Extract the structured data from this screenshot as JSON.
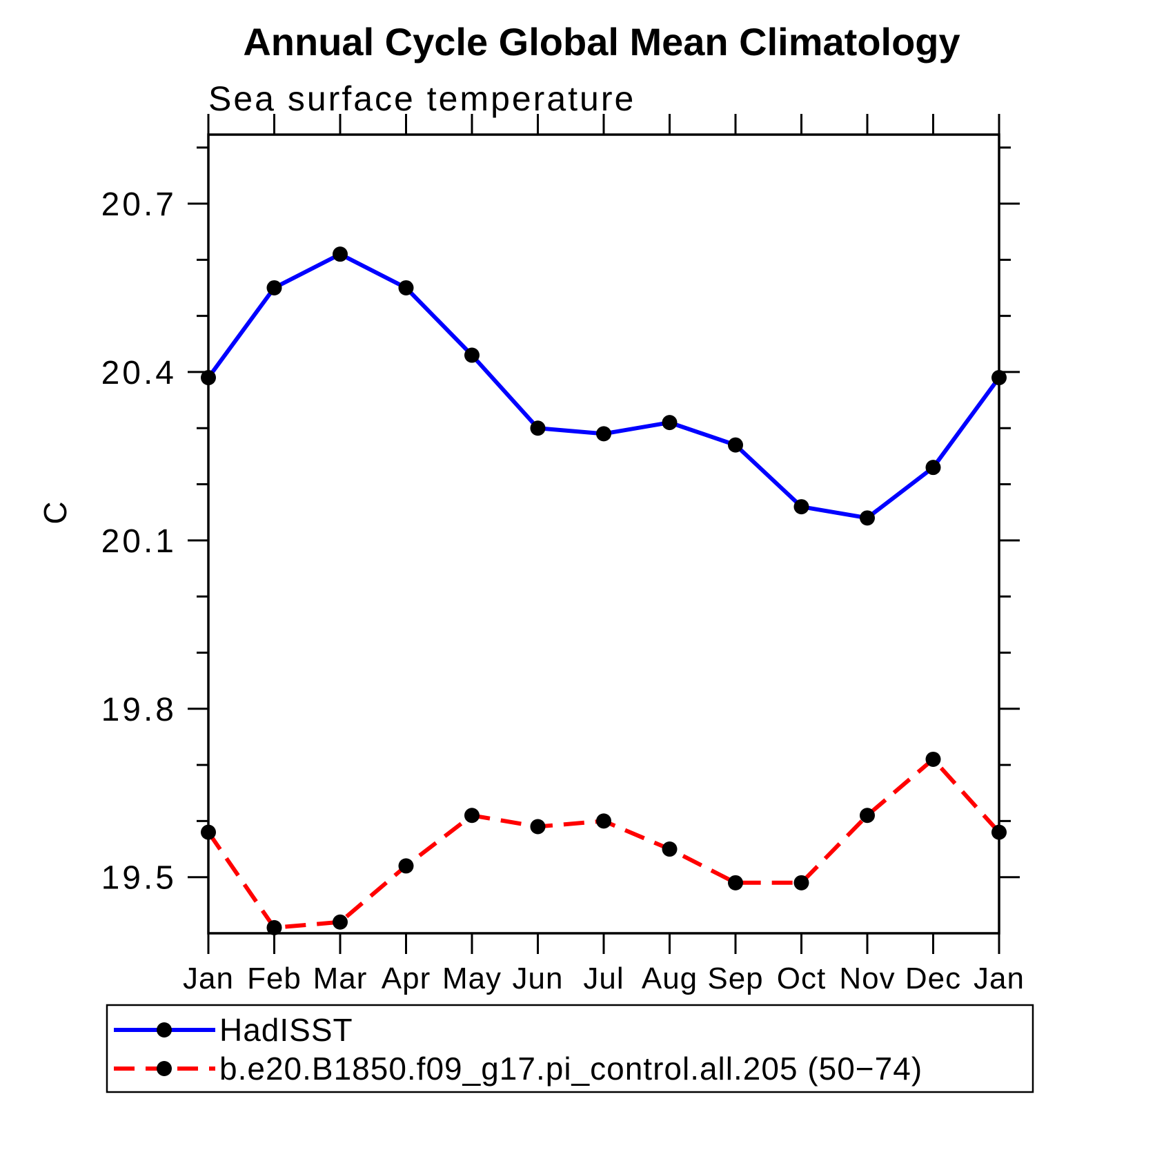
{
  "title": "Annual Cycle Global Mean Climatology",
  "subtitle": "Sea surface temperature",
  "ylabel": "C",
  "colors": {
    "obs_line": "#0000ff",
    "model_line": "#ff0000",
    "marker": "#000000",
    "axis": "#000000",
    "background": "#ffffff"
  },
  "legend": [
    {
      "label": "HadISST",
      "color": "#0000ff",
      "style": "solid",
      "marker": "circle"
    },
    {
      "label": "b.e20.B1850.f09_g17.pi_control.all.205 (50−74)",
      "color": "#ff0000",
      "style": "dashed",
      "marker": "circle"
    }
  ],
  "chart_data": {
    "type": "line",
    "categories": [
      "Jan",
      "Feb",
      "Mar",
      "Apr",
      "May",
      "Jun",
      "Jul",
      "Aug",
      "Sep",
      "Oct",
      "Nov",
      "Dec",
      "Jan"
    ],
    "series": [
      {
        "name": "HadISST",
        "color": "#0000ff",
        "dash": "solid",
        "marker": "circle",
        "values": [
          20.39,
          20.55,
          20.61,
          20.55,
          20.43,
          20.3,
          20.29,
          20.31,
          20.27,
          20.16,
          20.14,
          20.23,
          20.39
        ]
      },
      {
        "name": "b.e20.B1850.f09_g17.pi_control.all.205 (50−74)",
        "color": "#ff0000",
        "dash": "dashed",
        "marker": "circle",
        "values": [
          19.58,
          19.41,
          19.42,
          19.52,
          19.61,
          19.59,
          19.6,
          19.55,
          19.49,
          19.49,
          19.61,
          19.71,
          19.58
        ]
      }
    ],
    "yticks_major": [
      20.7,
      20.4,
      20.1,
      19.8,
      19.5
    ],
    "ytick_minor_step": 0.1,
    "ylim": [
      19.4,
      20.823
    ],
    "xlabel": "",
    "grid": false,
    "legend_position": "bottom"
  }
}
